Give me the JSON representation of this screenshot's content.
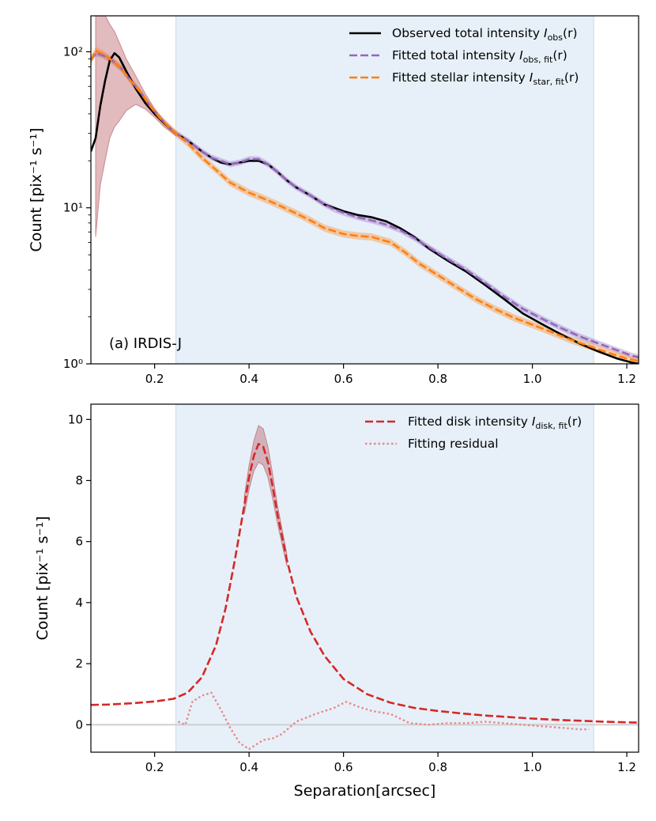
{
  "chart_data": [
    {
      "type": "line",
      "panel_label": "(a) IRDIS-J",
      "ylabel": "Count [pix⁻¹ s⁻¹]",
      "xlabel": "",
      "xlim": [
        0.065,
        1.225
      ],
      "ylim": [
        1,
        170
      ],
      "yscale": "log",
      "x_ticks": [
        "0.2",
        "0.4",
        "0.6",
        "0.8",
        "1.0",
        "1.2"
      ],
      "x_tick_values": [
        0.2,
        0.4,
        0.6,
        0.8,
        1.0,
        1.2
      ],
      "y_ticks": [
        "10⁰",
        "10¹",
        "10²"
      ],
      "y_tick_values": [
        1,
        10,
        100
      ],
      "shaded_region": [
        0.245,
        1.13
      ],
      "legend_position": "top-right",
      "grid": false,
      "series": [
        {
          "name": "Observed total intensity I_obs(r)",
          "legend_main": "Observed total intensity ",
          "legend_sym": "I",
          "legend_sub": "obs",
          "legend_tail": "(r)",
          "color": "#000000",
          "style": "solid",
          "x": [
            0.065,
            0.075,
            0.085,
            0.095,
            0.105,
            0.115,
            0.125,
            0.14,
            0.16,
            0.18,
            0.2,
            0.22,
            0.245,
            0.27,
            0.3,
            0.32,
            0.34,
            0.36,
            0.38,
            0.4,
            0.42,
            0.44,
            0.46,
            0.48,
            0.5,
            0.53,
            0.56,
            0.58,
            0.6,
            0.63,
            0.66,
            0.69,
            0.72,
            0.75,
            0.78,
            0.82,
            0.86,
            0.9,
            0.94,
            0.98,
            1.02,
            1.06,
            1.1,
            1.14,
            1.18,
            1.21,
            1.225
          ],
          "y": [
            23,
            28,
            45,
            65,
            88,
            98,
            92,
            75,
            58,
            47,
            40,
            35,
            30,
            27,
            23,
            21,
            19.5,
            19,
            19.5,
            20,
            20,
            19,
            17,
            15,
            13.5,
            12,
            10.5,
            10,
            9.5,
            9,
            8.7,
            8.2,
            7.4,
            6.5,
            5.5,
            4.6,
            3.9,
            3.2,
            2.6,
            2.1,
            1.8,
            1.55,
            1.35,
            1.2,
            1.08,
            1.02,
            1.0
          ]
        },
        {
          "name": "Fitted total intensity I_obs,fit(r)",
          "legend_main": "Fitted total intensity ",
          "legend_sym": "I",
          "legend_sub": "obs, fit",
          "legend_tail": "(r)",
          "color": "#9467bd",
          "style": "dashed",
          "band": 0.045,
          "x": [
            0.065,
            0.075,
            0.09,
            0.11,
            0.13,
            0.15,
            0.17,
            0.19,
            0.21,
            0.23,
            0.245,
            0.27,
            0.3,
            0.32,
            0.34,
            0.36,
            0.38,
            0.4,
            0.42,
            0.44,
            0.46,
            0.48,
            0.5,
            0.53,
            0.56,
            0.58,
            0.6,
            0.63,
            0.66,
            0.69,
            0.72,
            0.75,
            0.78,
            0.82,
            0.86,
            0.9,
            0.94,
            0.98,
            1.02,
            1.06,
            1.1,
            1.14,
            1.18,
            1.21,
            1.225
          ],
          "y": [
            88,
            98,
            95,
            88,
            78,
            65,
            55,
            45,
            38,
            33,
            30,
            27,
            23,
            21,
            20,
            19,
            19.5,
            20.5,
            20.5,
            19,
            17,
            15,
            13.5,
            12,
            10.5,
            9.8,
            9.3,
            8.7,
            8.3,
            7.8,
            7.2,
            6.4,
            5.6,
            4.7,
            4.0,
            3.3,
            2.7,
            2.25,
            1.95,
            1.7,
            1.5,
            1.35,
            1.22,
            1.13,
            1.1
          ]
        },
        {
          "name": "Fitted stellar intensity I_star,fit(r)",
          "legend_main": "Fitted stellar intensity ",
          "legend_sym": "I",
          "legend_sub": "star, fit",
          "legend_tail": "(r)",
          "color": "#ff7f0e",
          "style": "dashed",
          "band": 0.055,
          "x": [
            0.065,
            0.075,
            0.09,
            0.11,
            0.13,
            0.15,
            0.17,
            0.19,
            0.21,
            0.23,
            0.245,
            0.27,
            0.3,
            0.33,
            0.36,
            0.4,
            0.43,
            0.46,
            0.5,
            0.53,
            0.56,
            0.6,
            0.63,
            0.66,
            0.7,
            0.73,
            0.76,
            0.8,
            0.84,
            0.88,
            0.92,
            0.96,
            1.0,
            1.04,
            1.08,
            1.12,
            1.16,
            1.2,
            1.225
          ],
          "y": [
            88,
            102,
            97,
            88,
            78,
            65,
            55,
            45,
            38,
            33,
            30,
            26,
            21,
            17.5,
            14.5,
            12.5,
            11.5,
            10.5,
            9.2,
            8.3,
            7.4,
            6.8,
            6.6,
            6.5,
            6.0,
            5.2,
            4.4,
            3.7,
            3.1,
            2.6,
            2.25,
            1.98,
            1.78,
            1.6,
            1.43,
            1.3,
            1.18,
            1.08,
            1.04
          ]
        }
      ],
      "uncertainty_band": {
        "color": "#b5555c",
        "x": [
          0.075,
          0.085,
          0.095,
          0.105,
          0.115,
          0.125,
          0.14,
          0.16,
          0.18,
          0.2,
          0.22,
          0.245
        ],
        "upper": [
          175,
          185,
          172,
          150,
          135,
          115,
          90,
          70,
          54,
          43,
          36,
          30
        ],
        "lower": [
          6.5,
          14,
          20,
          28,
          33,
          36,
          42,
          46,
          43,
          38,
          33,
          29
        ]
      }
    },
    {
      "type": "line",
      "xlabel": "Separation[arcsec]",
      "ylabel": "Count [pix⁻¹ s⁻¹]",
      "xlim": [
        0.065,
        1.225
      ],
      "ylim": [
        -0.9,
        10.5
      ],
      "yscale": "linear",
      "x_ticks": [
        "0.2",
        "0.4",
        "0.6",
        "0.8",
        "1.0",
        "1.2"
      ],
      "x_tick_values": [
        0.2,
        0.4,
        0.6,
        0.8,
        1.0,
        1.2
      ],
      "y_ticks": [
        "0",
        "2",
        "4",
        "6",
        "8",
        "10"
      ],
      "y_tick_values": [
        0,
        2,
        4,
        6,
        8,
        10
      ],
      "shaded_region": [
        0.245,
        1.13
      ],
      "zero_line": true,
      "legend_position": "top-right",
      "grid": false,
      "series": [
        {
          "name": "Fitted disk intensity I_disk,fit(r)",
          "legend_main": "Fitted disk intensity ",
          "legend_sym": "I",
          "legend_sub": "disk, fit",
          "legend_tail": "(r)",
          "color": "#d62728",
          "style": "dashed",
          "x": [
            0.065,
            0.1,
            0.15,
            0.2,
            0.24,
            0.27,
            0.3,
            0.33,
            0.35,
            0.37,
            0.39,
            0.4,
            0.41,
            0.42,
            0.43,
            0.44,
            0.45,
            0.46,
            0.48,
            0.5,
            0.53,
            0.56,
            0.6,
            0.65,
            0.7,
            0.75,
            0.8,
            0.85,
            0.9,
            0.95,
            1.0,
            1.05,
            1.1,
            1.15,
            1.2,
            1.225
          ],
          "y": [
            0.65,
            0.66,
            0.7,
            0.76,
            0.85,
            1.05,
            1.55,
            2.6,
            3.8,
            5.4,
            7.2,
            8.1,
            8.8,
            9.2,
            9.1,
            8.6,
            7.8,
            6.9,
            5.4,
            4.2,
            3.05,
            2.25,
            1.5,
            1.0,
            0.72,
            0.55,
            0.45,
            0.37,
            0.3,
            0.25,
            0.2,
            0.16,
            0.13,
            0.1,
            0.08,
            0.07
          ]
        },
        {
          "name": "Fitting residual",
          "legend_main": "Fitting residual",
          "legend_sym": "",
          "legend_sub": "",
          "legend_tail": "",
          "color": "#e8888a",
          "style": "dotted",
          "x": [
            0.25,
            0.265,
            0.28,
            0.3,
            0.32,
            0.34,
            0.36,
            0.38,
            0.4,
            0.415,
            0.43,
            0.45,
            0.47,
            0.5,
            0.54,
            0.58,
            0.605,
            0.63,
            0.66,
            0.7,
            0.74,
            0.78,
            0.82,
            0.86,
            0.9,
            0.94,
            0.98,
            1.02,
            1.06,
            1.1,
            1.12
          ],
          "y": [
            0.1,
            0.0,
            0.75,
            0.95,
            1.05,
            0.5,
            -0.1,
            -0.6,
            -0.8,
            -0.65,
            -0.5,
            -0.45,
            -0.3,
            0.1,
            0.35,
            0.55,
            0.75,
            0.6,
            0.45,
            0.35,
            0.05,
            0.0,
            0.05,
            0.05,
            0.1,
            0.05,
            0.0,
            -0.05,
            -0.1,
            -0.15,
            -0.15
          ]
        }
      ],
      "uncertainty_band": {
        "color": "#b5555c",
        "x": [
          0.39,
          0.4,
          0.41,
          0.42,
          0.43,
          0.44,
          0.45,
          0.46,
          0.48
        ],
        "upper": [
          7.5,
          8.5,
          9.3,
          9.8,
          9.7,
          9.1,
          8.2,
          7.2,
          5.6
        ],
        "lower": [
          6.9,
          7.7,
          8.3,
          8.6,
          8.5,
          8.1,
          7.4,
          6.6,
          5.2
        ]
      }
    }
  ]
}
